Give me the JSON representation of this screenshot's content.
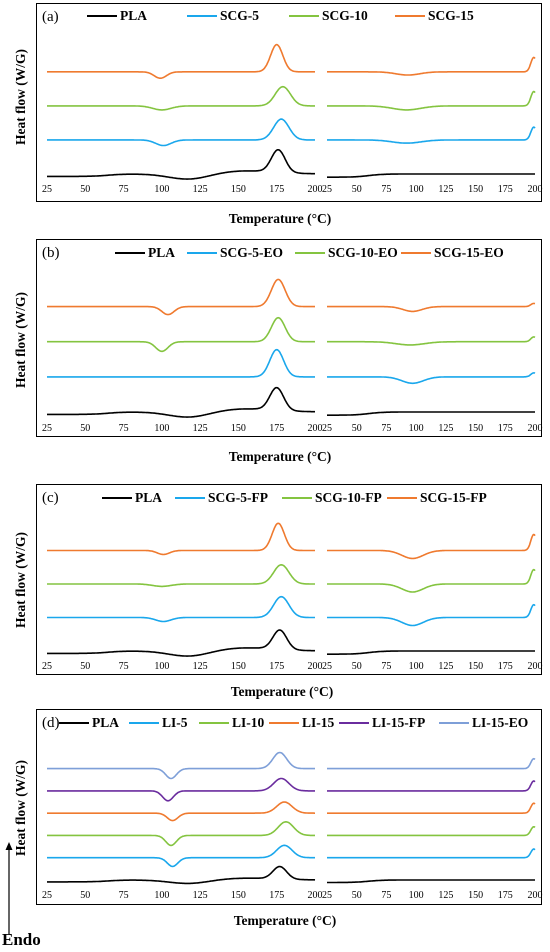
{
  "figure": {
    "endo_label": "Endo",
    "ylabel": "Heat flow (W/G)",
    "xlabel": "Temperature (°C)"
  },
  "chart_data": [
    {
      "type": "line",
      "panel_label": "(a)",
      "ylabel": "Heat flow (W/G)",
      "xlabel": "Temperature (°C)",
      "xlim": [
        25,
        200
      ],
      "xticks": [
        "25",
        "50",
        "75",
        "100",
        "125",
        "150",
        "175",
        "200"
      ],
      "legend": [
        {
          "name": "PLA",
          "color": "#000000"
        },
        {
          "name": "SCG-5",
          "color": "#1aa7ec"
        },
        {
          "name": "SCG-10",
          "color": "#84c440"
        },
        {
          "name": "SCG-15",
          "color": "#ef7a2f"
        }
      ],
      "left_curves": [
        {
          "name": "PLA",
          "color": "#000000",
          "base": 0,
          "features": [
            {
              "c": 65,
              "w": 5,
              "a": 3,
              "kind": "step"
            },
            {
              "c": 118,
              "w": 13,
              "a": -7
            },
            {
              "c": 176,
              "w": 4.5,
              "a": 28
            },
            {
              "c": 155,
              "w": 20,
              "a": 4
            }
          ]
        },
        {
          "name": "SCG-5",
          "color": "#1aa7ec",
          "base": 1,
          "features": [
            {
              "c": 101,
              "w": 5,
              "a": -7
            },
            {
              "c": 178,
              "w": 5,
              "a": 26
            }
          ]
        },
        {
          "name": "SCG-10",
          "color": "#84c440",
          "base": 2,
          "features": [
            {
              "c": 100,
              "w": 6,
              "a": -5
            },
            {
              "c": 179,
              "w": 5,
              "a": 24
            }
          ]
        },
        {
          "name": "SCG-15",
          "color": "#ef7a2f",
          "base": 3,
          "features": [
            {
              "c": 99,
              "w": 4,
              "a": -8
            },
            {
              "c": 175,
              "w": 4,
              "a": 34
            }
          ]
        }
      ],
      "right_curves": [
        {
          "name": "PLA",
          "color": "#000000",
          "base": 0,
          "features": [
            {
              "c": 60,
              "w": 6,
              "a": 4,
              "kind": "step"
            },
            {
              "c": 200,
              "w": 3,
              "a": 0
            }
          ]
        },
        {
          "name": "SCG-5",
          "color": "#1aa7ec",
          "base": 1,
          "features": [
            {
              "c": 92,
              "w": 12,
              "a": -4
            },
            {
              "c": 199,
              "w": 2.5,
              "a": 16
            }
          ]
        },
        {
          "name": "SCG-10",
          "color": "#84c440",
          "base": 2,
          "features": [
            {
              "c": 92,
              "w": 12,
              "a": -5
            },
            {
              "c": 199,
              "w": 2.5,
              "a": 18
            }
          ]
        },
        {
          "name": "SCG-15",
          "color": "#ef7a2f",
          "base": 3,
          "features": [
            {
              "c": 93,
              "w": 10,
              "a": -4
            },
            {
              "c": 199,
              "w": 2.5,
              "a": 18
            }
          ]
        }
      ]
    },
    {
      "type": "line",
      "panel_label": "(b)",
      "ylabel": "Heat flow (W/G)",
      "xlabel": "Temperature (°C)",
      "xlim": [
        25,
        200
      ],
      "xticks": [
        "25",
        "50",
        "75",
        "100",
        "125",
        "150",
        "175",
        "200"
      ],
      "legend": [
        {
          "name": "PLA",
          "color": "#000000"
        },
        {
          "name": "SCG-5-EO",
          "color": "#1aa7ec"
        },
        {
          "name": "SCG-10-EO",
          "color": "#84c440"
        },
        {
          "name": "SCG-15-EO",
          "color": "#ef7a2f"
        }
      ],
      "left_curves": [
        {
          "name": "PLA",
          "color": "#000000",
          "base": 0,
          "features": [
            {
              "c": 65,
              "w": 5,
              "a": 3,
              "kind": "step"
            },
            {
              "c": 118,
              "w": 13,
              "a": -7
            },
            {
              "c": 175,
              "w": 4.5,
              "a": 28
            },
            {
              "c": 155,
              "w": 20,
              "a": 4
            }
          ]
        },
        {
          "name": "SCG-5-EO",
          "color": "#1aa7ec",
          "base": 1,
          "features": [
            {
              "c": 175,
              "w": 4.5,
              "a": 34
            }
          ]
        },
        {
          "name": "SCG-10-EO",
          "color": "#84c440",
          "base": 2,
          "features": [
            {
              "c": 100,
              "w": 4,
              "a": -12
            },
            {
              "c": 176,
              "w": 4.5,
              "a": 30
            }
          ]
        },
        {
          "name": "SCG-15-EO",
          "color": "#ef7a2f",
          "base": 3,
          "features": [
            {
              "c": 104,
              "w": 4,
              "a": -10
            },
            {
              "c": 176,
              "w": 4.5,
              "a": 34
            }
          ]
        }
      ],
      "right_curves": [
        {
          "name": "PLA",
          "color": "#000000",
          "base": 0,
          "features": [
            {
              "c": 60,
              "w": 6,
              "a": 4,
              "kind": "step"
            }
          ]
        },
        {
          "name": "SCG-5-EO",
          "color": "#1aa7ec",
          "base": 1,
          "features": [
            {
              "c": 97,
              "w": 9,
              "a": -8
            },
            {
              "c": 199,
              "w": 2.5,
              "a": 5
            }
          ]
        },
        {
          "name": "SCG-10-EO",
          "color": "#84c440",
          "base": 2,
          "features": [
            {
              "c": 95,
              "w": 12,
              "a": -4
            },
            {
              "c": 199,
              "w": 2.5,
              "a": 6
            }
          ]
        },
        {
          "name": "SCG-15-EO",
          "color": "#ef7a2f",
          "base": 3,
          "features": [
            {
              "c": 97,
              "w": 8,
              "a": -6
            },
            {
              "c": 199,
              "w": 2.5,
              "a": 4
            }
          ]
        }
      ]
    },
    {
      "type": "line",
      "panel_label": "(c)",
      "ylabel": "Heat flow (W/G)",
      "xlabel": "Temperature (°C)",
      "xlim": [
        25,
        200
      ],
      "xticks": [
        "25",
        "50",
        "75",
        "100",
        "125",
        "150",
        "175",
        "200"
      ],
      "legend": [
        {
          "name": "PLA",
          "color": "#000000"
        },
        {
          "name": "SCG-5-FP",
          "color": "#1aa7ec"
        },
        {
          "name": "SCG-10-FP",
          "color": "#84c440"
        },
        {
          "name": "SCG-15-FP",
          "color": "#ef7a2f"
        }
      ],
      "left_curves": [
        {
          "name": "PLA",
          "color": "#000000",
          "base": 0,
          "features": [
            {
              "c": 65,
              "w": 5,
              "a": 3,
              "kind": "step"
            },
            {
              "c": 118,
              "w": 13,
              "a": -7
            },
            {
              "c": 177,
              "w": 4.5,
              "a": 24
            },
            {
              "c": 155,
              "w": 20,
              "a": 4
            }
          ]
        },
        {
          "name": "SCG-5-FP",
          "color": "#1aa7ec",
          "base": 1,
          "features": [
            {
              "c": 101,
              "w": 5,
              "a": -5
            },
            {
              "c": 178,
              "w": 5,
              "a": 26
            }
          ]
        },
        {
          "name": "SCG-10-FP",
          "color": "#84c440",
          "base": 2,
          "features": [
            {
              "c": 100,
              "w": 6,
              "a": -3
            },
            {
              "c": 178,
              "w": 5,
              "a": 24
            }
          ]
        },
        {
          "name": "SCG-15-FP",
          "color": "#ef7a2f",
          "base": 3,
          "features": [
            {
              "c": 101,
              "w": 4,
              "a": -5
            },
            {
              "c": 176,
              "w": 4,
              "a": 34
            }
          ]
        }
      ],
      "right_curves": [
        {
          "name": "PLA",
          "color": "#000000",
          "base": 0,
          "features": [
            {
              "c": 60,
              "w": 6,
              "a": 4,
              "kind": "step"
            }
          ]
        },
        {
          "name": "SCG-5-FP",
          "color": "#1aa7ec",
          "base": 1,
          "features": [
            {
              "c": 97,
              "w": 9,
              "a": -10
            },
            {
              "c": 199,
              "w": 2.5,
              "a": 16
            }
          ]
        },
        {
          "name": "SCG-10-FP",
          "color": "#84c440",
          "base": 2,
          "features": [
            {
              "c": 97,
              "w": 9,
              "a": -10
            },
            {
              "c": 199,
              "w": 2.5,
              "a": 18
            }
          ]
        },
        {
          "name": "SCG-15-FP",
          "color": "#ef7a2f",
          "base": 3,
          "features": [
            {
              "c": 97,
              "w": 9,
              "a": -10
            },
            {
              "c": 199,
              "w": 2.5,
              "a": 20
            }
          ]
        }
      ]
    },
    {
      "type": "line",
      "panel_label": "(d)",
      "ylabel": "Heat flow (W/G)",
      "xlabel": "Temperature (°C)",
      "xlim": [
        25,
        200
      ],
      "xticks": [
        "25",
        "50",
        "75",
        "100",
        "125",
        "150",
        "175",
        "200"
      ],
      "legend": [
        {
          "name": "PLA",
          "color": "#000000"
        },
        {
          "name": "LI-5",
          "color": "#1aa7ec"
        },
        {
          "name": "LI-10",
          "color": "#84c440"
        },
        {
          "name": "LI-15",
          "color": "#ef7a2f"
        },
        {
          "name": "LI-15-FP",
          "color": "#6a2c9e"
        },
        {
          "name": "LI-15-EO",
          "color": "#7e9fd8"
        }
      ],
      "left_curves": [
        {
          "name": "PLA",
          "color": "#000000",
          "base": 0,
          "features": [
            {
              "c": 65,
              "w": 5,
              "a": 3,
              "kind": "step"
            },
            {
              "c": 118,
              "w": 13,
              "a": -6
            },
            {
              "c": 177,
              "w": 4.5,
              "a": 20
            },
            {
              "c": 155,
              "w": 20,
              "a": 3
            }
          ]
        },
        {
          "name": "LI-5",
          "color": "#1aa7ec",
          "base": 1,
          "features": [
            {
              "c": 107,
              "w": 3.5,
              "a": -14
            },
            {
              "c": 180,
              "w": 5,
              "a": 20
            }
          ]
        },
        {
          "name": "LI-10",
          "color": "#84c440",
          "base": 2,
          "features": [
            {
              "c": 106,
              "w": 3.5,
              "a": -16
            },
            {
              "c": 181,
              "w": 5,
              "a": 22
            }
          ]
        },
        {
          "name": "LI-15",
          "color": "#ef7a2f",
          "base": 3,
          "features": [
            {
              "c": 107,
              "w": 3.5,
              "a": -12
            },
            {
              "c": 180,
              "w": 5,
              "a": 18
            }
          ]
        },
        {
          "name": "LI-15-FP",
          "color": "#6a2c9e",
          "base": 4,
          "features": [
            {
              "c": 104,
              "w": 3.5,
              "a": -16
            },
            {
              "c": 178,
              "w": 5,
              "a": 20
            }
          ]
        },
        {
          "name": "LI-15-EO",
          "color": "#7e9fd8",
          "base": 5,
          "features": [
            {
              "c": 106,
              "w": 3.5,
              "a": -16
            },
            {
              "c": 177,
              "w": 4.5,
              "a": 26
            }
          ]
        }
      ],
      "right_curves": [
        {
          "name": "PLA",
          "color": "#000000",
          "base": 0,
          "features": [
            {
              "c": 60,
              "w": 6,
              "a": 4,
              "kind": "step"
            }
          ]
        },
        {
          "name": "LI-5",
          "color": "#1aa7ec",
          "base": 1,
          "features": [
            {
              "c": 199,
              "w": 2.5,
              "a": 14
            }
          ]
        },
        {
          "name": "LI-10",
          "color": "#84c440",
          "base": 2,
          "features": [
            {
              "c": 199,
              "w": 2.5,
              "a": 14
            }
          ]
        },
        {
          "name": "LI-15",
          "color": "#ef7a2f",
          "base": 3,
          "features": [
            {
              "c": 199,
              "w": 2.5,
              "a": 16
            }
          ]
        },
        {
          "name": "LI-15-FP",
          "color": "#6a2c9e",
          "base": 4,
          "features": [
            {
              "c": 199,
              "w": 2.5,
              "a": 16
            }
          ]
        },
        {
          "name": "LI-15-EO",
          "color": "#7e9fd8",
          "base": 5,
          "features": [
            {
              "c": 199,
              "w": 2.5,
              "a": 16
            }
          ]
        }
      ]
    }
  ]
}
